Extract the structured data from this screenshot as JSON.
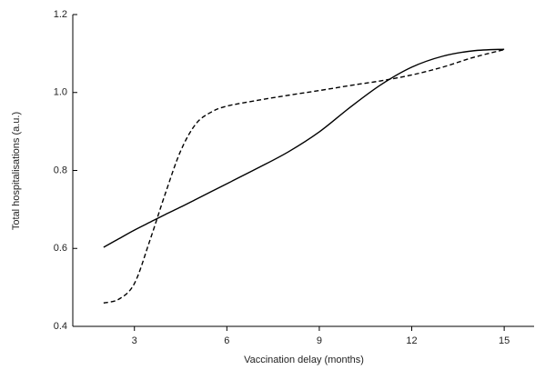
{
  "chart_data": {
    "type": "line",
    "x_label": "Vaccination delay (months)",
    "y_label": "Total hospitalisations (a.u.)",
    "x": [
      2,
      2.5,
      3,
      3.5,
      4,
      4.5,
      5,
      5.5,
      6,
      7,
      8,
      9,
      10,
      11,
      12,
      13,
      14,
      15
    ],
    "series": [
      {
        "color": "#000000",
        "dash": "solid",
        "values": [
          0.603,
          0.625,
          0.647,
          0.667,
          0.687,
          0.706,
          0.726,
          0.746,
          0.766,
          0.806,
          0.848,
          0.899,
          0.962,
          1.02,
          1.065,
          1.093,
          1.107,
          1.111
        ]
      },
      {
        "color": "#000000",
        "dash": "dashed",
        "values": [
          0.46,
          0.47,
          0.51,
          0.62,
          0.74,
          0.85,
          0.92,
          0.95,
          0.965,
          0.98,
          0.993,
          1.005,
          1.018,
          1.03,
          1.045,
          1.065,
          1.09,
          1.11
        ]
      }
    ],
    "xlim": [
      1,
      16
    ],
    "xticks": [
      3,
      6,
      9,
      12,
      15
    ],
    "ylim": [
      0.4,
      1.2
    ],
    "yticks": [
      0.4,
      0.6,
      0.8,
      {
        "value": 1,
        "label": "1.0"
      },
      1.2
    ],
    "grid": false
  }
}
